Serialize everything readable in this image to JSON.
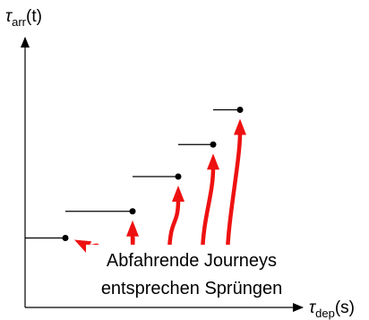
{
  "chart_data": {
    "type": "line",
    "title": "",
    "xlabel": {
      "main": "τ",
      "sub": "dep",
      "arg": "(s)"
    },
    "ylabel": {
      "main": "τ",
      "sub": "arr",
      "arg": "(t)"
    },
    "xlim": [
      0,
      10
    ],
    "ylim": [
      0,
      10
    ],
    "grid": false,
    "series": [
      {
        "steps": [
          {
            "x_start": 0.0,
            "x_end": 1.5,
            "y": 2.6
          },
          {
            "x_start": 1.5,
            "x_end": 4.0,
            "y": 3.6
          },
          {
            "x_start": 4.0,
            "x_end": 5.7,
            "y": 4.9
          },
          {
            "x_start": 5.7,
            "x_end": 7.0,
            "y": 6.1
          },
          {
            "x_start": 7.0,
            "x_end": 8.0,
            "y": 7.4
          }
        ],
        "breakpoints": [
          {
            "x": 1.5,
            "y": 2.6
          },
          {
            "x": 4.0,
            "y": 3.6
          },
          {
            "x": 5.7,
            "y": 4.9
          },
          {
            "x": 7.0,
            "y": 6.1
          },
          {
            "x": 8.0,
            "y": 7.4
          }
        ]
      }
    ],
    "annotation": {
      "lines": [
        "Abfahrende Journeys",
        "entsprechen Sprüngen"
      ],
      "color": "#ee1111"
    }
  }
}
